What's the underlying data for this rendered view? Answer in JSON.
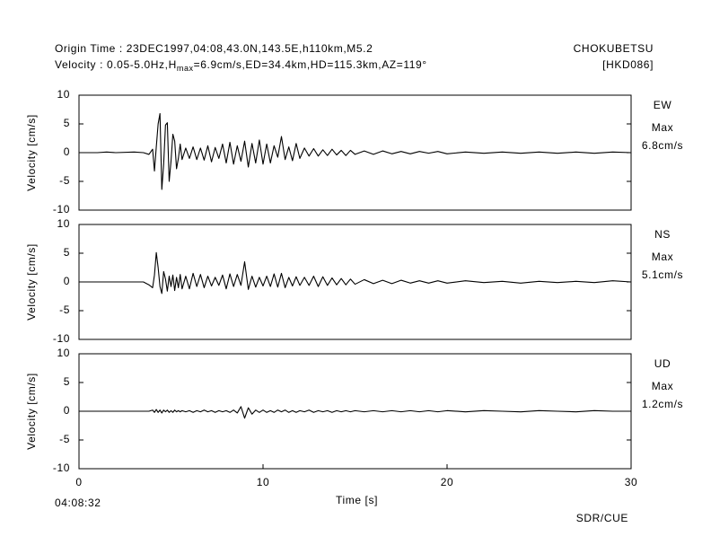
{
  "header": {
    "origin_line": "Origin Time : 23DEC1997,04:08,43.0N,143.5E,h110km,M5.2",
    "velocity_prefix": "Velocity : 0.05-5.0Hz,H",
    "velocity_subscript": "max",
    "velocity_suffix": "=6.9cm/s,ED=34.4km,HD=115.3km,AZ=119°",
    "station": "CHOKUBETSU",
    "station_code": "[HKD086]"
  },
  "footer": {
    "start_time": "04:08:32",
    "credit": "SDR/CUE"
  },
  "chart_data": [
    {
      "type": "line",
      "component": "EW",
      "max_label": "Max",
      "max_value": "6.8cm/s",
      "ylabel": "Velocity [cm/s]",
      "color": "#000000",
      "xlim": [
        0,
        30
      ],
      "ylim": [
        -10,
        10
      ],
      "yticks": [
        -10,
        -5,
        0,
        5,
        10
      ],
      "x": [
        0,
        1,
        1.5,
        2,
        3,
        3.5,
        3.8,
        4.0,
        4.1,
        4.2,
        4.3,
        4.4,
        4.5,
        4.6,
        4.7,
        4.8,
        4.9,
        5.0,
        5.1,
        5.2,
        5.3,
        5.4,
        5.5,
        5.6,
        5.8,
        6.0,
        6.2,
        6.4,
        6.6,
        6.8,
        7.0,
        7.2,
        7.4,
        7.6,
        7.8,
        8.0,
        8.2,
        8.4,
        8.6,
        8.8,
        9.0,
        9.2,
        9.4,
        9.6,
        9.8,
        10.0,
        10.2,
        10.4,
        10.6,
        10.8,
        11.0,
        11.2,
        11.4,
        11.6,
        11.8,
        12.0,
        12.25,
        12.5,
        12.75,
        13.0,
        13.25,
        13.5,
        13.75,
        14.0,
        14.25,
        14.5,
        14.75,
        15.0,
        15.5,
        16,
        16.5,
        17,
        17.5,
        18,
        18.5,
        19,
        19.5,
        20,
        21,
        22,
        23,
        24,
        25,
        26,
        27,
        28,
        29,
        30
      ],
      "values": [
        0,
        0,
        0.1,
        0,
        0.1,
        0,
        -0.3,
        0.6,
        -3.2,
        1.0,
        5.0,
        6.8,
        -6.4,
        -2.0,
        4.8,
        5.2,
        -5.0,
        -1.5,
        3.2,
        2.0,
        -2.8,
        -1.0,
        1.5,
        -1.2,
        0.8,
        -1.0,
        1.0,
        -1.2,
        0.8,
        -1.3,
        1.2,
        -1.6,
        0.9,
        -1.0,
        1.5,
        -1.8,
        1.8,
        -2.0,
        1.2,
        -1.5,
        2.0,
        -2.5,
        1.6,
        -1.8,
        2.2,
        -2.0,
        1.5,
        -1.8,
        1.2,
        -0.8,
        2.8,
        -1.2,
        1.0,
        -1.4,
        1.6,
        -1.0,
        0.8,
        -0.6,
        0.7,
        -0.6,
        0.5,
        -0.5,
        0.6,
        -0.4,
        0.4,
        -0.5,
        0.4,
        -0.3,
        0.3,
        -0.3,
        0.3,
        -0.2,
        0.2,
        -0.2,
        0.2,
        -0.1,
        0.2,
        -0.2,
        0.1,
        -0.1,
        0.1,
        -0.1,
        0.1,
        -0.1,
        0.1,
        -0.1,
        0.1,
        0
      ]
    },
    {
      "type": "line",
      "component": "NS",
      "max_label": "Max",
      "max_value": "5.1cm/s",
      "ylabel": "Velocity [cm/s]",
      "color": "#000000",
      "xlim": [
        0,
        30
      ],
      "ylim": [
        -10,
        10
      ],
      "yticks": [
        -10,
        -5,
        0,
        5,
        10
      ],
      "x": [
        0,
        1,
        1.5,
        2,
        3,
        3.5,
        3.8,
        4.0,
        4.1,
        4.2,
        4.3,
        4.4,
        4.5,
        4.6,
        4.7,
        4.8,
        4.9,
        5.0,
        5.1,
        5.2,
        5.3,
        5.4,
        5.5,
        5.6,
        5.8,
        6.0,
        6.2,
        6.4,
        6.6,
        6.8,
        7.0,
        7.2,
        7.4,
        7.6,
        7.8,
        8.0,
        8.2,
        8.4,
        8.6,
        8.8,
        9.0,
        9.2,
        9.4,
        9.6,
        9.8,
        10.0,
        10.2,
        10.4,
        10.6,
        10.8,
        11.0,
        11.2,
        11.4,
        11.6,
        11.8,
        12.0,
        12.25,
        12.5,
        12.75,
        13.0,
        13.25,
        13.5,
        13.75,
        14.0,
        14.25,
        14.5,
        14.75,
        15.0,
        15.5,
        16,
        16.5,
        17,
        17.5,
        18,
        18.5,
        19,
        19.5,
        20,
        21,
        22,
        23,
        24,
        25,
        26,
        27,
        28,
        29,
        30
      ],
      "values": [
        0,
        0,
        0,
        0,
        0,
        0,
        -0.5,
        -1.0,
        1.2,
        5.1,
        2.5,
        -0.8,
        -2.0,
        1.8,
        0.5,
        -1.6,
        1.0,
        -0.8,
        1.2,
        -1.5,
        0.8,
        -1.0,
        1.3,
        -1.2,
        1.0,
        -1.2,
        1.5,
        -0.8,
        1.3,
        -1.0,
        1.0,
        -0.7,
        0.8,
        -0.6,
        1.2,
        -1.2,
        1.4,
        -0.8,
        1.3,
        -0.6,
        3.5,
        -1.3,
        1.0,
        -0.9,
        0.8,
        -0.7,
        1.0,
        -0.8,
        1.4,
        -0.9,
        1.5,
        -1.0,
        0.8,
        -0.7,
        0.9,
        -0.6,
        0.8,
        -0.6,
        1.0,
        -0.8,
        0.9,
        -0.6,
        0.7,
        -0.5,
        0.6,
        -0.5,
        0.5,
        -0.4,
        0.4,
        -0.3,
        0.3,
        -0.3,
        0.3,
        -0.2,
        0.2,
        -0.2,
        0.2,
        -0.2,
        0.2,
        -0.1,
        0.1,
        -0.2,
        0.1,
        -0.1,
        0.1,
        -0.1,
        0.2,
        0
      ]
    },
    {
      "type": "line",
      "component": "UD",
      "max_label": "Max",
      "max_value": "1.2cm/s",
      "ylabel": "Velocity [cm/s]",
      "xlabel": "Time [s]",
      "color": "#000000",
      "xlim": [
        0,
        30
      ],
      "xticks": [
        0,
        10,
        20,
        30
      ],
      "ylim": [
        -10,
        10
      ],
      "yticks": [
        -10,
        -5,
        0,
        5,
        10
      ],
      "x": [
        0,
        1,
        1.5,
        2,
        3,
        3.5,
        3.8,
        4.0,
        4.1,
        4.2,
        4.3,
        4.4,
        4.5,
        4.6,
        4.7,
        4.8,
        4.9,
        5.0,
        5.1,
        5.2,
        5.3,
        5.4,
        5.5,
        5.6,
        5.8,
        6.0,
        6.2,
        6.4,
        6.6,
        6.8,
        7.0,
        7.2,
        7.4,
        7.6,
        7.8,
        8.0,
        8.2,
        8.4,
        8.6,
        8.8,
        9.0,
        9.2,
        9.4,
        9.6,
        9.8,
        10.0,
        10.2,
        10.4,
        10.6,
        10.8,
        11.0,
        11.2,
        11.4,
        11.6,
        11.8,
        12.0,
        12.25,
        12.5,
        12.75,
        13.0,
        13.25,
        13.5,
        13.75,
        14.0,
        14.25,
        14.5,
        14.75,
        15.0,
        15.5,
        16,
        16.5,
        17,
        17.5,
        18,
        18.5,
        19,
        19.5,
        20,
        21,
        22,
        23,
        24,
        25,
        26,
        27,
        28,
        29,
        30
      ],
      "values": [
        0,
        0,
        0,
        0,
        0,
        0,
        0,
        0.2,
        -0.2,
        0.3,
        -0.2,
        0.2,
        -0.3,
        0.2,
        -0.1,
        0.2,
        -0.2,
        0.1,
        -0.2,
        0.2,
        -0.1,
        0.1,
        -0.1,
        0.1,
        -0.1,
        0.1,
        -0.2,
        0.1,
        -0.1,
        0.2,
        -0.1,
        0.1,
        -0.2,
        0.1,
        -0.1,
        0.1,
        -0.2,
        0.2,
        -0.3,
        0.8,
        -1.2,
        0.6,
        -0.5,
        0.2,
        -0.2,
        0.2,
        -0.2,
        0.1,
        -0.2,
        0.2,
        -0.1,
        0.2,
        -0.2,
        0.1,
        -0.2,
        0.1,
        -0.1,
        0.2,
        -0.2,
        0.1,
        -0.1,
        0.1,
        -0.2,
        0.1,
        -0.1,
        0.1,
        -0.1,
        0.1,
        -0.1,
        0.1,
        -0.1,
        0.1,
        -0.1,
        0.1,
        -0.1,
        0.1,
        -0.1,
        0.1,
        -0.1,
        0.1,
        0,
        -0.1,
        0.1,
        0,
        -0.1,
        0.1,
        0,
        0
      ]
    }
  ]
}
